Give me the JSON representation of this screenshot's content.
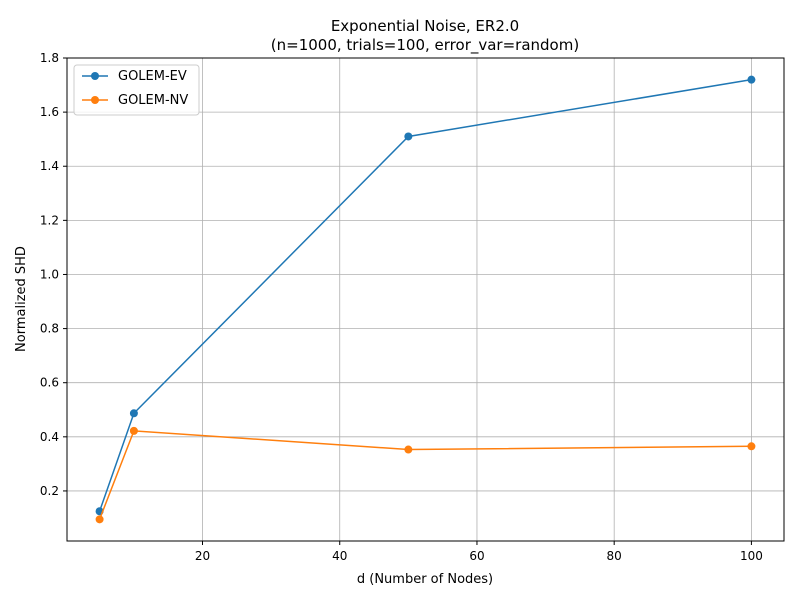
{
  "chart_data": {
    "type": "line",
    "title": "Exponential Noise, ER2.0",
    "subtitle": "(n=1000, trials=100, error_var=random)",
    "xlabel": "d (Number of Nodes)",
    "ylabel": "Normalized SHD",
    "x": [
      5,
      10,
      50,
      100
    ],
    "xlim": [
      0.25,
      104.75
    ],
    "ylim": [
      0.015,
      1.8
    ],
    "xticks": [
      20,
      40,
      60,
      80,
      100
    ],
    "yticks": [
      0.2,
      0.4,
      0.6,
      0.8,
      1.0,
      1.2,
      1.4,
      1.6,
      1.8
    ],
    "xtick_labels": [
      "20",
      "40",
      "60",
      "80",
      "100"
    ],
    "ytick_labels": [
      "0.2",
      "0.4",
      "0.6",
      "0.8",
      "1.0",
      "1.2",
      "1.4",
      "1.6",
      "1.8"
    ],
    "grid": true,
    "legend_position": "top-left",
    "series": [
      {
        "name": "GOLEM-EV",
        "color": "#1f77b4",
        "values": [
          0.125,
          0.487,
          1.51,
          1.72
        ]
      },
      {
        "name": "GOLEM-NV",
        "color": "#ff7f0e",
        "values": [
          0.095,
          0.422,
          0.353,
          0.365
        ]
      }
    ]
  }
}
